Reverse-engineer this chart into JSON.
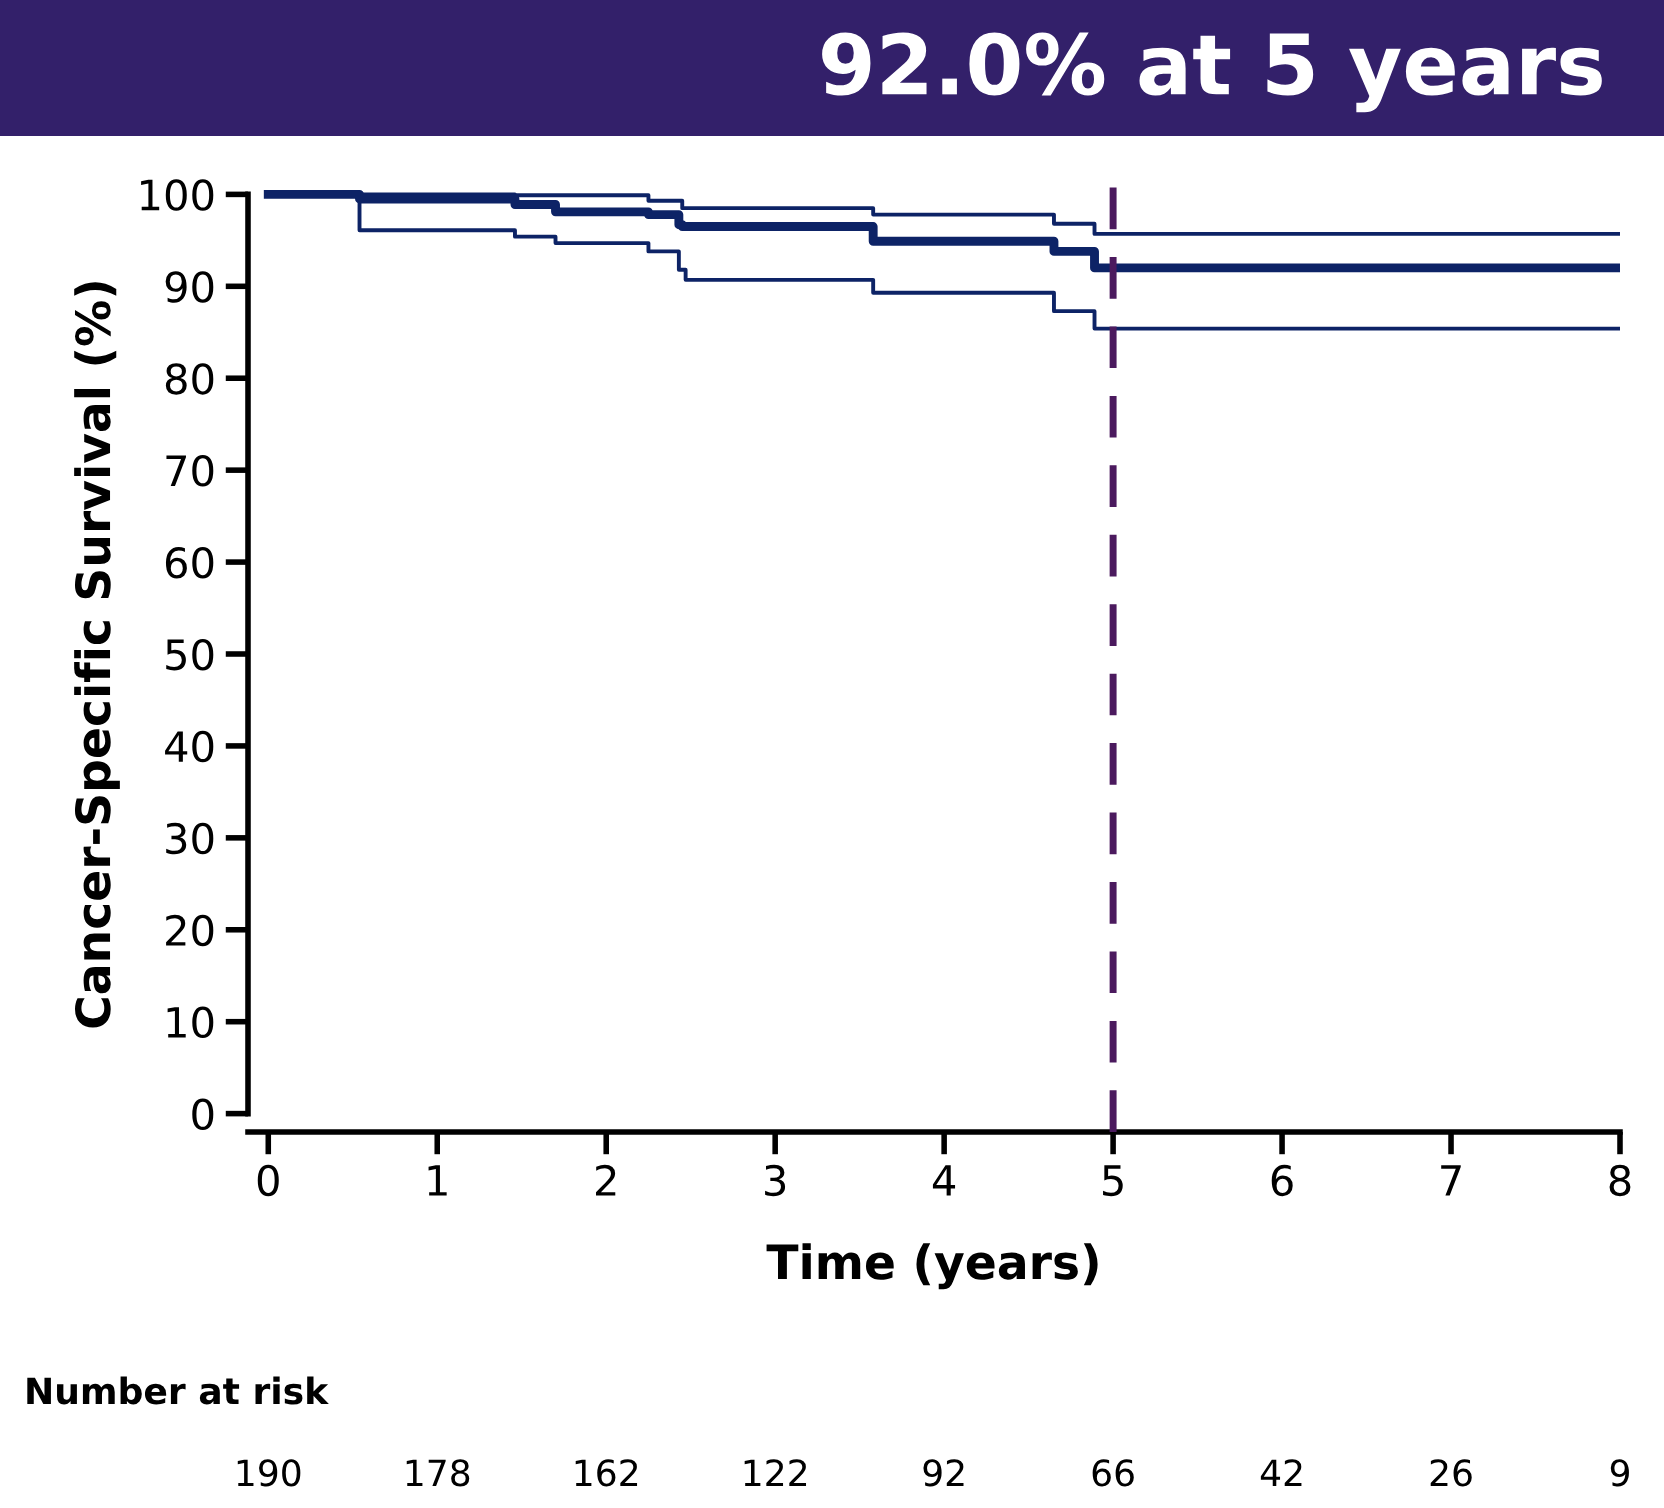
{
  "chart_data": {
    "type": "step",
    "title": "92.0% at 5 years",
    "xlabel": "Time (years)",
    "ylabel": "Cancer-Specific Survival (%)",
    "series": [
      {
        "color": "#0d2366",
        "x": [
          0,
          0.54,
          1.46,
          1.7,
          2.25,
          2.43,
          2.45,
          3.58,
          4.65,
          4.89,
          8
        ],
        "values": [
          100,
          99.5,
          98.9,
          98.1,
          97.8,
          96.7,
          96.5,
          94.9,
          93.8,
          92.0,
          92.0
        ]
      },
      {
        "color": "#0d2366",
        "x": [
          0,
          1.46,
          2.25,
          2.45,
          3.58,
          4.65,
          4.89,
          8
        ],
        "values": [
          100,
          99.9,
          99.3,
          98.5,
          97.8,
          96.8,
          95.7,
          95.7
        ]
      },
      {
        "color": "#0d2366",
        "x": [
          0,
          0.54,
          1.46,
          1.7,
          2.25,
          2.43,
          2.47,
          3.58,
          4.65,
          4.89,
          8
        ],
        "values": [
          100,
          96.1,
          95.4,
          94.7,
          93.8,
          91.8,
          90.7,
          89.3,
          87.3,
          85.4,
          85.4
        ]
      }
    ],
    "xlim": [
      -0.12,
      8
    ],
    "xticks": [
      0,
      1,
      2,
      3,
      4,
      5,
      6,
      7,
      8
    ],
    "ylim": [
      -2,
      102
    ],
    "yticks": [
      0,
      10,
      20,
      30,
      40,
      50,
      60,
      70,
      80,
      90,
      100
    ],
    "ref_lines": [
      {
        "axis": "x",
        "value": 5,
        "color": "#4b1a5e",
        "line_style": "dashed"
      }
    ],
    "annotations": [
      "Number at risk",
      "190",
      "178",
      "162",
      "122",
      "92",
      "66",
      "42",
      "26",
      "9"
    ],
    "grid": false,
    "legend": false
  }
}
